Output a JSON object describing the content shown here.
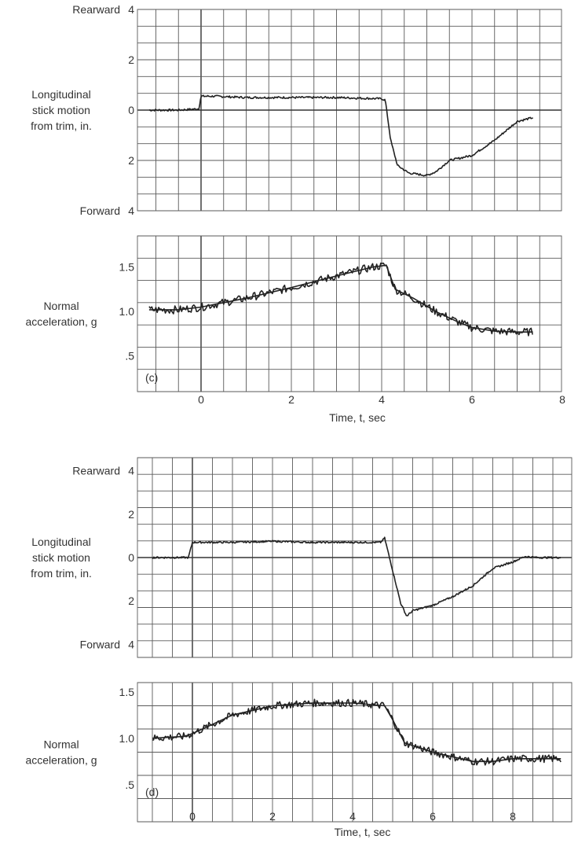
{
  "chart_data": [
    {
      "type": "line",
      "panel": "(c)",
      "subplots": [
        {
          "ylabel": [
            "Longitudinal",
            "stick motion",
            "from trim, in."
          ],
          "ytick_labels": [
            "4",
            "2",
            "0",
            "2",
            "4"
          ],
          "ytick_values": [
            4,
            2,
            0,
            -2,
            -4
          ],
          "direction_labels": {
            "top": "Rearward",
            "bottom": "Forward"
          },
          "ylim": [
            -4,
            4
          ],
          "series": [
            {
              "x": [
                -1.15,
                -0.5,
                -0.05,
                0.0,
                0.3,
                1.0,
                2.0,
                3.0,
                4.0,
                4.08,
                4.2,
                4.35,
                4.6,
                5.0,
                5.2,
                5.5,
                6.0,
                6.5,
                7.0,
                7.35
              ],
              "y": [
                0.0,
                0.0,
                0.05,
                0.55,
                0.55,
                0.5,
                0.5,
                0.5,
                0.45,
                0.4,
                -1.2,
                -2.2,
                -2.5,
                -2.6,
                -2.45,
                -2.0,
                -1.8,
                -1.2,
                -0.45,
                -0.3
              ]
            }
          ]
        },
        {
          "ylabel": [
            "Normal",
            "acceleration, g"
          ],
          "ytick_labels": [
            "1.5",
            "1.0",
            ".5"
          ],
          "ytick_values": [
            1.5,
            1.0,
            0.5
          ],
          "ylim": [
            0.1,
            1.85
          ],
          "xlabel": "Time, t, sec",
          "xtick_labels": [
            "0",
            "2",
            "4",
            "6",
            "8"
          ],
          "xtick_values": [
            0,
            2,
            4,
            6,
            8
          ],
          "xlim": [
            -1.2,
            8
          ],
          "series": [
            {
              "x": [
                -1.15,
                -0.5,
                0.0,
                1.0,
                2.0,
                3.0,
                3.8,
                4.1,
                4.3,
                4.7,
                5.2,
                5.7,
                6.0,
                6.5,
                7.0,
                7.35
              ],
              "y": [
                1.02,
                1.02,
                1.05,
                1.15,
                1.27,
                1.4,
                1.5,
                1.52,
                1.25,
                1.15,
                1.0,
                0.88,
                0.82,
                0.78,
                0.77,
                0.77
              ],
              "noise": 0.045
            }
          ]
        }
      ]
    },
    {
      "type": "line",
      "panel": "(d)",
      "subplots": [
        {
          "ylabel": [
            "Longitudinal",
            "stick motion",
            "from trim, in."
          ],
          "ytick_labels": [
            "4",
            "2",
            "0",
            "2",
            "4"
          ],
          "ytick_values": [
            4,
            2,
            0,
            -2,
            -4
          ],
          "direction_labels": {
            "top": "Rearward",
            "bottom": "Forward"
          },
          "ylim": [
            -4.6,
            4.6
          ],
          "series": [
            {
              "x": [
                -1.0,
                -0.1,
                0.0,
                1.0,
                2.0,
                3.0,
                4.0,
                4.7,
                4.8,
                5.0,
                5.2,
                5.35,
                5.5,
                6.0,
                6.5,
                7.0,
                7.5,
                8.0,
                8.3,
                8.6,
                9.2
              ],
              "y": [
                0.0,
                0.0,
                0.7,
                0.7,
                0.75,
                0.7,
                0.7,
                0.7,
                0.9,
                -0.6,
                -2.1,
                -2.7,
                -2.45,
                -2.2,
                -1.8,
                -1.3,
                -0.5,
                -0.2,
                0.05,
                0.0,
                0.0
              ]
            }
          ]
        },
        {
          "ylabel": [
            "Normal",
            "acceleration, g"
          ],
          "ytick_labels": [
            "1.5",
            "1.0",
            ".5"
          ],
          "ytick_values": [
            1.5,
            1.0,
            0.5
          ],
          "ylim": [
            0.1,
            1.6
          ],
          "xlabel": "Time, t, sec",
          "xtick_labels": [
            "0",
            "2",
            "4",
            "6",
            "8"
          ],
          "xtick_values": [
            0,
            2,
            4,
            6,
            8
          ],
          "xlim": [
            -1.1,
            9.4
          ],
          "series": [
            {
              "x": [
                -1.0,
                -0.2,
                0.0,
                1.0,
                2.0,
                3.0,
                4.0,
                4.8,
                5.0,
                5.3,
                6.0,
                7.0,
                7.5,
                8.0,
                9.2
              ],
              "y": [
                1.0,
                1.02,
                1.05,
                1.25,
                1.35,
                1.38,
                1.38,
                1.35,
                1.2,
                0.95,
                0.85,
                0.75,
                0.75,
                0.78,
                0.78
              ],
              "noise": 0.04
            }
          ]
        }
      ]
    }
  ]
}
